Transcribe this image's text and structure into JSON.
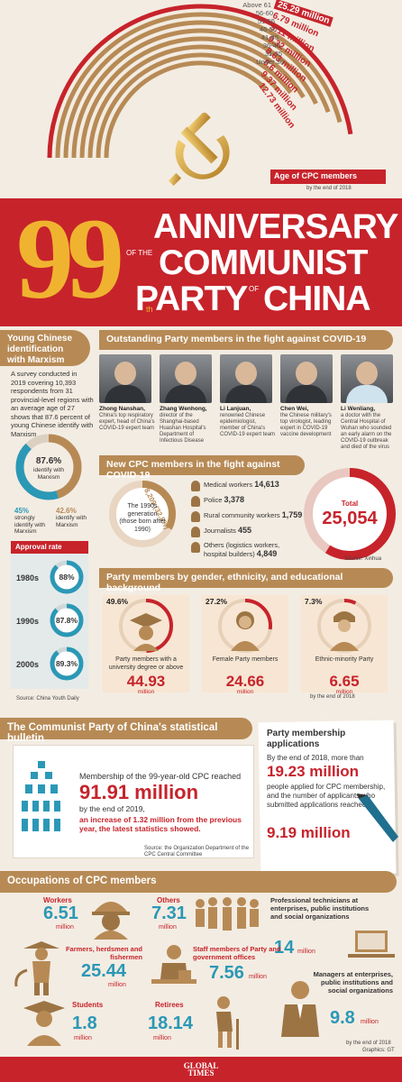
{
  "age": {
    "groups": [
      {
        "label": "Above 61",
        "value": "25.29 million",
        "pct": 0.95
      },
      {
        "label": "56-60",
        "value": "6.79 million",
        "pct": 0.92
      },
      {
        "label": "51-55",
        "value": "9.11 million",
        "pct": 0.89
      },
      {
        "label": "46-50",
        "value": "9.32 million",
        "pct": 0.86
      },
      {
        "label": "41-45",
        "value": "8.63 million",
        "pct": 0.83
      },
      {
        "label": "36-40",
        "value": "8.6 million",
        "pct": 0.8
      },
      {
        "label": "31-35",
        "value": "9.37 million",
        "pct": 0.77
      },
      {
        "label": "Under 30",
        "value": "12.73 million",
        "pct": 0.74
      }
    ],
    "title": "Age of CPC members",
    "note": "by the end of 2018"
  },
  "banner": {
    "number": "99",
    "th": "th",
    "line1": "ANNIVERSARY",
    "ofthe": "OF THE",
    "line2": "COMMUNIST",
    "line3a": "PARTY",
    "of": "OF",
    "line3b": "CHINA"
  },
  "young": {
    "title": "Young Chinese identification with Marxism",
    "survey": "A survey conducted in 2019 covering 10,393 respondents from 31 provincial-level regions with an average age of 27 shows that 87.6 percent of young Chinese identify with Marxism",
    "main_pct": "87.6%",
    "main_label": "identify with Marxism",
    "strong_pct": "45%",
    "strong_label": "strongly identify with Marxism",
    "identify_pct": "42.6%",
    "identify_label": "identify with Marxism",
    "approval_title": "Approval rate",
    "rates": [
      {
        "decade": "1980s",
        "pct": "88%",
        "value": 0.88
      },
      {
        "decade": "1990s",
        "pct": "87.8%",
        "value": 0.878
      },
      {
        "decade": "2000s",
        "pct": "89.3%",
        "value": 0.893
      }
    ],
    "source": "Source: China Youth Daily"
  },
  "covid": {
    "title": "Outstanding Party members in the fight against COVID-19",
    "people": [
      {
        "name": "Zhong Nanshan,",
        "desc": "China's top respiratory expert, head of China's COVID-19 expert team"
      },
      {
        "name": "Zhang Wenhong,",
        "desc": "director of the Shanghai-based Huashan Hospital's Department of Infectious Disease"
      },
      {
        "name": "Li Lanjuan,",
        "desc": "renowned Chinese epidemiologist, member of China's COVID-19 expert team"
      },
      {
        "name": "Chen Wei,",
        "desc": "the Chinese military's top virologist, leading expert in COVID-19 vaccine development"
      },
      {
        "name": "Li Wenliang,",
        "desc": "a doctor with the Central Hospital of Wuhan who sounded an early alarm on the COVID-19 outbreak and died of the virus"
      }
    ]
  },
  "newmembers": {
    "title": "New CPC members in the fight against COVID-19",
    "gen_value": "8,209 (32.8%)",
    "gen_label": "The 1990s generation (those born after 1990)",
    "gen_fraction": 0.328,
    "items": [
      {
        "label": "Medical workers",
        "value": "14,613"
      },
      {
        "label": "Police",
        "value": "3,378"
      },
      {
        "label": "Rural community workers",
        "value": "1,759"
      },
      {
        "label": "Journalists",
        "value": "455"
      },
      {
        "label": "Others (logistics workers, hospital builders)",
        "value": "4,849"
      }
    ],
    "total_label": "Total",
    "total_value": "25,054",
    "source": "Source: Xinhua"
  },
  "gender": {
    "title": "Party members by gender, ethnicity, and educational background",
    "items": [
      {
        "pct": "49.6%",
        "fraction": 0.496,
        "label": "Party members with a university degree or above",
        "value": "44.93",
        "unit": "million"
      },
      {
        "pct": "27.2%",
        "fraction": 0.272,
        "label": "Female Party members",
        "value": "24.66",
        "unit": "million"
      },
      {
        "pct": "7.3%",
        "fraction": 0.073,
        "label": "Ethnic-minority Party",
        "value": "6.65",
        "unit": "million"
      }
    ],
    "note": "by the end of 2018"
  },
  "bulletin": {
    "title": "The Communist Party of China's statistical bulletin",
    "intro": "Membership of the 99-year-old CPC reached",
    "value": "91.91 million",
    "by": "by the end of 2019,",
    "increase": "an increase of 1.32 million from the previous year, the latest statistics showed.",
    "source": "Source: the Organization Department of the CPC Central Committee"
  },
  "applications": {
    "title": "Party membership applications",
    "t1": "By the end of 2018, more than",
    "v1": "19.23 million",
    "t2": "people applied for CPC membership, and the number of applicants who submitted applications reached",
    "v2": "9.19 million"
  },
  "occupations": {
    "title": "Occupations of CPC members",
    "workers": {
      "label": "Workers",
      "value": "6.51",
      "unit": "million"
    },
    "others": {
      "label": "Others",
      "value": "7.31",
      "unit": "million"
    },
    "technicians": {
      "label": "Professional technicians at enterprises, public institutions and social organizations",
      "value": "14",
      "unit": "million"
    },
    "farmers": {
      "label": "Farmers, herdsmen and fishermen",
      "value": "25.44",
      "unit": "million"
    },
    "staff": {
      "label": "Staff members of Party and government offices",
      "value": "7.56",
      "unit": "million"
    },
    "managers": {
      "label": "Managers at enterprises, public institutions and social organizations",
      "value": "9.8",
      "unit": "million"
    },
    "students": {
      "label": "Students",
      "value": "1.8",
      "unit": "million"
    },
    "retirees": {
      "label": "Retirees",
      "value": "18.14",
      "unit": "million"
    },
    "note": "by the end of 2018",
    "graphics": "Graphics: GT"
  },
  "footer": {
    "logo": "GLOBAL TIMES"
  },
  "colors": {
    "red": "#c7232b",
    "tan": "#b78a55",
    "bg": "#f3ece2",
    "panel": "#f7e6d3"
  }
}
